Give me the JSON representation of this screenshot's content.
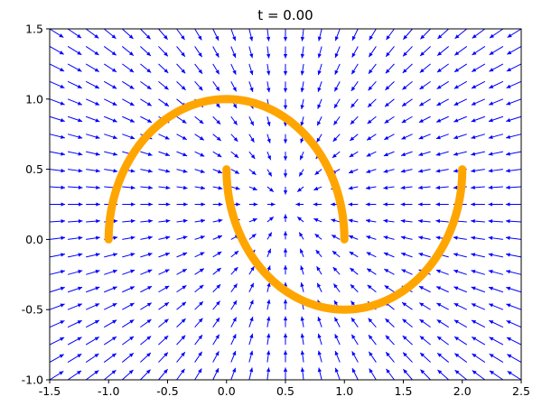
{
  "chart_data": {
    "type": "quiver",
    "title": "t = 0.00",
    "xlabel": "",
    "ylabel": "",
    "xlim": [
      -1.5,
      2.5
    ],
    "ylim": [
      -1.0,
      1.5
    ],
    "xticks": [
      "-1.5",
      "-1.0",
      "-0.5",
      "0.0",
      "0.5",
      "1.0",
      "1.5",
      "2.0",
      "2.5"
    ],
    "yticks": [
      "-1.0",
      "-0.5",
      "0.0",
      "0.5",
      "1.0",
      "1.5"
    ],
    "xtick_values": [
      -1.5,
      -1.0,
      -0.5,
      0.0,
      0.5,
      1.0,
      1.5,
      2.0,
      2.5
    ],
    "ytick_values": [
      -1.0,
      -0.5,
      0.0,
      0.5,
      1.0,
      1.5
    ],
    "grid": false,
    "field": {
      "color": "#0000ff",
      "x_range": [
        -1.5,
        2.5
      ],
      "y_range": [
        -1.0,
        1.5
      ],
      "nx": 27,
      "ny": 21,
      "center": [
        0.5,
        0.25
      ]
    },
    "curves": [
      {
        "color": "#ffa500",
        "description": "two interleaving half circles",
        "arcs": [
          {
            "center": [
              0.0,
              0.0
            ],
            "radius": 1.0,
            "start_deg": 0,
            "end_deg": 180
          },
          {
            "center": [
              1.0,
              0.5
            ],
            "radius": 1.0,
            "start_deg": 180,
            "end_deg": 360
          }
        ]
      }
    ]
  }
}
